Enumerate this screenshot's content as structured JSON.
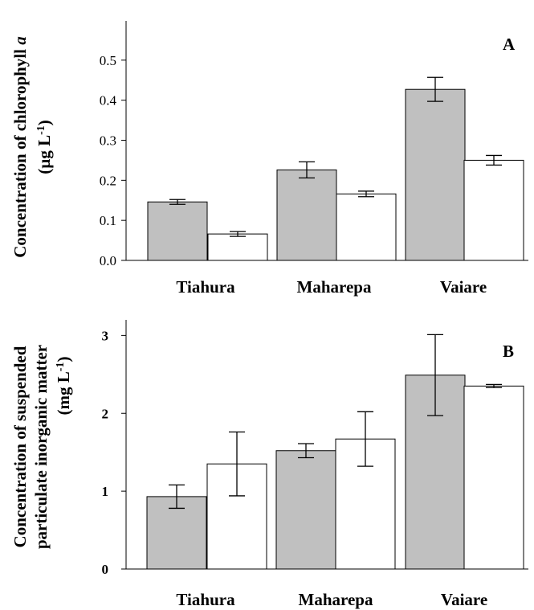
{
  "chart_data": [
    {
      "type": "bar",
      "panel_label": "A",
      "ylabel_lines": [
        "Concentration of chlorophyll a",
        "(µg L-1)"
      ],
      "ylabel_parts": {
        "line1_text": "Concentration of chlorophyll ",
        "line1_italic": "a",
        "line2_prefix": "(µg L",
        "line2_sup": "-1",
        "line2_suffix": ")"
      },
      "categories": [
        "Tiahura",
        "Maharepa",
        "Vaiare"
      ],
      "series": [
        {
          "color": "#c0c0c0",
          "values": [
            0.146,
            0.226,
            0.427
          ],
          "errors": [
            0.006,
            0.02,
            0.03
          ]
        },
        {
          "color": "#ffffff",
          "values": [
            0.066,
            0.166,
            0.25
          ],
          "errors": [
            0.006,
            0.007,
            0.012
          ]
        }
      ],
      "ylim": [
        0,
        0.6
      ],
      "yticks": [
        "0.0",
        "0.1",
        "0.2",
        "0.3",
        "0.4",
        "0.5"
      ],
      "ytick_values": [
        0,
        0.1,
        0.2,
        0.3,
        0.4,
        0.5
      ],
      "ytick_bold": false,
      "grid": false,
      "legend": "none"
    },
    {
      "type": "bar",
      "panel_label": "B",
      "ylabel_lines": [
        "Concentration of suspended",
        "particulate inorganic matter",
        "(mg L-1)"
      ],
      "ylabel_parts": {
        "line1_text": "Concentration of suspended",
        "line2_text": "particulate inorganic matter",
        "line3_prefix": "(mg L",
        "line3_sup": "-1",
        "line3_suffix": ")"
      },
      "categories": [
        "Tiahura",
        "Maharepa",
        "Vaiare"
      ],
      "series": [
        {
          "color": "#c0c0c0",
          "values": [
            0.93,
            1.52,
            2.49
          ],
          "errors": [
            0.15,
            0.09,
            0.52
          ]
        },
        {
          "color": "#ffffff",
          "values": [
            1.35,
            1.67,
            2.35
          ],
          "errors": [
            0.41,
            0.35,
            0.02
          ]
        }
      ],
      "ylim": [
        0,
        3.2
      ],
      "yticks": [
        "0",
        "1",
        "2",
        "3"
      ],
      "ytick_values": [
        0,
        1,
        2,
        3
      ],
      "ytick_bold": true,
      "grid": false,
      "legend": "none"
    }
  ]
}
